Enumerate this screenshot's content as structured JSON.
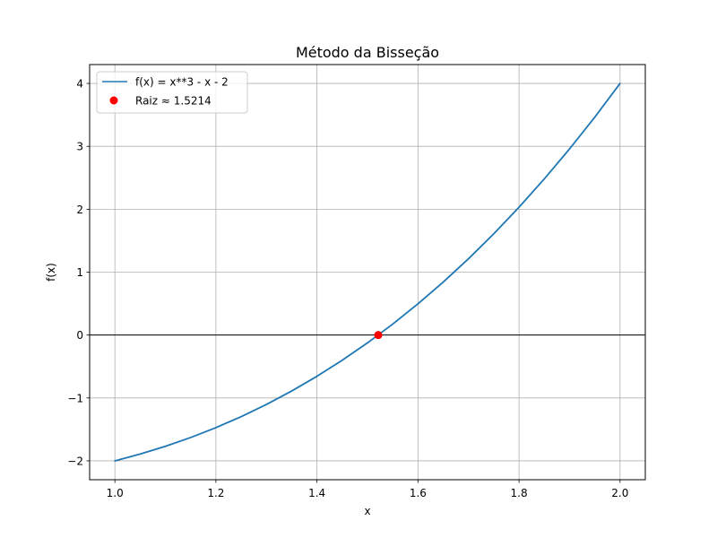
{
  "chart_data": {
    "type": "line",
    "title": "Método da Bisseção",
    "xlabel": "x",
    "ylabel": "f(x)",
    "xlim": [
      0.95,
      2.05
    ],
    "ylim": [
      -2.3,
      4.3
    ],
    "grid": true,
    "legend_placement": "top-left",
    "xticks": [
      1.0,
      1.2,
      1.4,
      1.6,
      1.8,
      2.0
    ],
    "xtick_labels": [
      "1.0",
      "1.2",
      "1.4",
      "1.6",
      "1.8",
      "2.0"
    ],
    "yticks": [
      -2,
      -1,
      0,
      1,
      2,
      3,
      4
    ],
    "ytick_labels": [
      "−2",
      "−1",
      "0",
      "1",
      "2",
      "3",
      "4"
    ],
    "horizontal_line": {
      "y": 0,
      "color": "#000000"
    },
    "series": [
      {
        "name": "f(x) = x**3 - x - 2",
        "kind": "line",
        "color": "#1f77b4",
        "x": [
          1.0,
          1.05,
          1.1,
          1.15,
          1.2,
          1.25,
          1.3,
          1.35,
          1.4,
          1.45,
          1.5,
          1.55,
          1.6,
          1.65,
          1.7,
          1.75,
          1.8,
          1.85,
          1.9,
          1.95,
          2.0
        ],
        "y": [
          -2.0,
          -1.892,
          -1.769,
          -1.629,
          -1.472,
          -1.297,
          -1.103,
          -0.89,
          -0.656,
          -0.401,
          -0.125,
          0.174,
          0.496,
          0.842,
          1.213,
          1.609,
          2.032,
          2.482,
          2.959,
          3.464,
          4.0
        ]
      },
      {
        "name": "Raiz ≈ 1.5214",
        "kind": "scatter",
        "color": "#ff0000",
        "x": [
          1.5214
        ],
        "y": [
          0.0
        ]
      }
    ]
  }
}
